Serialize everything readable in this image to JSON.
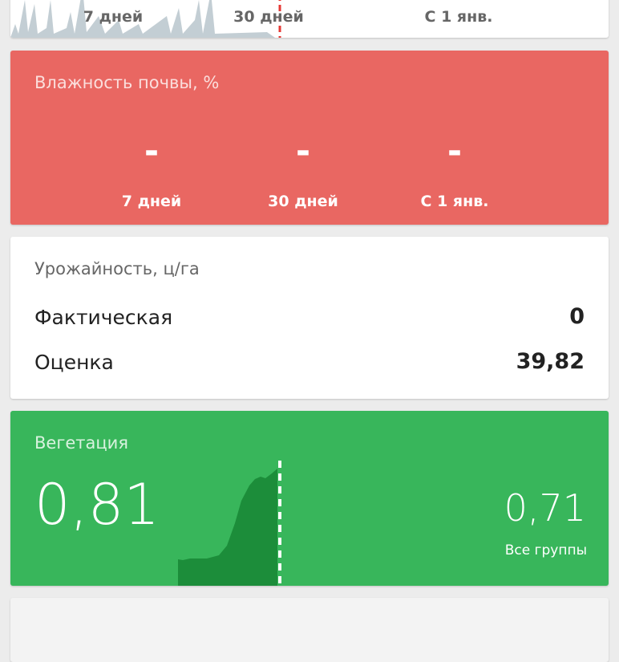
{
  "top_card": {
    "periods": [
      "7 дней",
      "30 дней",
      "С 1 янв."
    ],
    "marker_color": "#e53935"
  },
  "soil_moisture": {
    "title": "Влажность почвы, %",
    "values": [
      "-",
      "-",
      "-"
    ],
    "periods": [
      "7 дней",
      "30 дней",
      "С 1 янв."
    ],
    "color": "#e96762"
  },
  "yield": {
    "title": "Урожайность, ц/га",
    "rows": [
      {
        "label": "Фактическая",
        "value": "0"
      },
      {
        "label": "Оценка",
        "value": "39,82"
      }
    ]
  },
  "vegetation": {
    "title": "Вегетация",
    "value": "0,81",
    "group_value": "0,71",
    "group_label": "Все группы",
    "color": "#38b65b"
  }
}
